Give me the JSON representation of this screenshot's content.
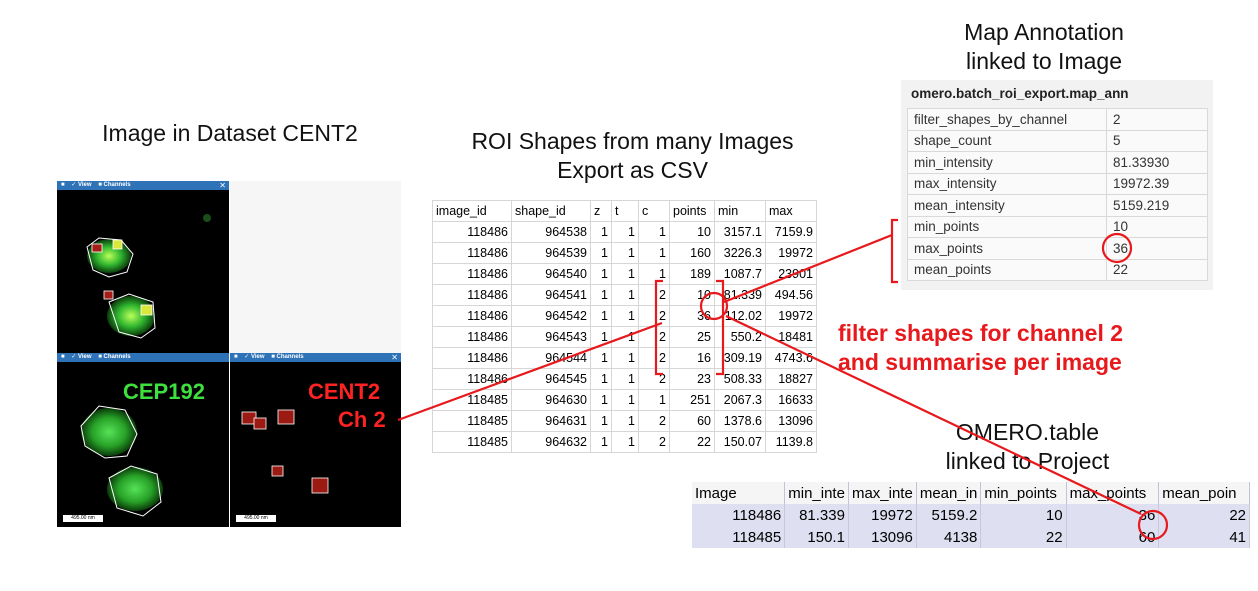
{
  "captions": {
    "image_in_dataset": "Image in Dataset CENT2",
    "roi_line1": "ROI Shapes from many Images",
    "roi_line2": "Export as CSV",
    "map_line1": "Map Annotation",
    "map_line2": "linked to Image",
    "filter_line1": "filter shapes for channel 2",
    "filter_line2": "and summarise per image",
    "table_line1": "OMERO.table",
    "table_line2": "linked to Project"
  },
  "viewer": {
    "view_label": "View",
    "channels_label": "Channels",
    "scalebar": "495.00 nm",
    "cep_label": "CEP192",
    "cent_label": "CENT2",
    "ch_label": "Ch 2"
  },
  "csv": {
    "headers": [
      "image_id",
      "shape_id",
      "z",
      "t",
      "c",
      "points",
      "min",
      "max"
    ],
    "rows": [
      [
        "118486",
        "964538",
        "1",
        "1",
        "1",
        "10",
        "3157.1",
        "7159.9"
      ],
      [
        "118486",
        "964539",
        "1",
        "1",
        "1",
        "160",
        "3226.3",
        "19972"
      ],
      [
        "118486",
        "964540",
        "1",
        "1",
        "1",
        "189",
        "1087.7",
        "23901"
      ],
      [
        "118486",
        "964541",
        "1",
        "1",
        "2",
        "10",
        "81.339",
        "494.56"
      ],
      [
        "118486",
        "964542",
        "1",
        "1",
        "2",
        "36",
        "112.02",
        "19972"
      ],
      [
        "118486",
        "964543",
        "1",
        "1",
        "2",
        "25",
        "550.2",
        "18481"
      ],
      [
        "118486",
        "964544",
        "1",
        "1",
        "2",
        "16",
        "309.19",
        "4743.6"
      ],
      [
        "118486",
        "964545",
        "1",
        "1",
        "2",
        "23",
        "508.33",
        "18827"
      ],
      [
        "118485",
        "964630",
        "1",
        "1",
        "1",
        "251",
        "2067.3",
        "16633"
      ],
      [
        "118485",
        "964631",
        "1",
        "1",
        "2",
        "60",
        "1378.6",
        "13096"
      ],
      [
        "118485",
        "964632",
        "1",
        "1",
        "2",
        "22",
        "150.07",
        "1139.8"
      ]
    ]
  },
  "map_annotation": {
    "title": "omero.batch_roi_export.map_ann",
    "rows": [
      {
        "key": "filter_shapes_by_channel",
        "value": "2"
      },
      {
        "key": "shape_count",
        "value": "5"
      },
      {
        "key": "min_intensity",
        "value": "81.33930"
      },
      {
        "key": "max_intensity",
        "value": "19972.39"
      },
      {
        "key": "mean_intensity",
        "value": "5159.219"
      },
      {
        "key": "min_points",
        "value": "10"
      },
      {
        "key": "max_points",
        "value": "36"
      },
      {
        "key": "mean_points",
        "value": "22"
      }
    ]
  },
  "omero_table": {
    "headers": [
      "Image",
      "min_inte",
      "max_inte",
      "mean_in",
      "min_points",
      "max_points",
      "mean_poin"
    ],
    "rows": [
      [
        "118486",
        "81.339",
        "19972",
        "5159.2",
        "10",
        "36",
        "22"
      ],
      [
        "118485",
        "150.1",
        "13096",
        "4138",
        "22",
        "60",
        "41"
      ]
    ]
  },
  "colors": {
    "annotation_red": "#e8191c",
    "viewer_bar": "#2e72b8",
    "green_channel": "#3ec43e",
    "red_channel": "#c0201c"
  }
}
